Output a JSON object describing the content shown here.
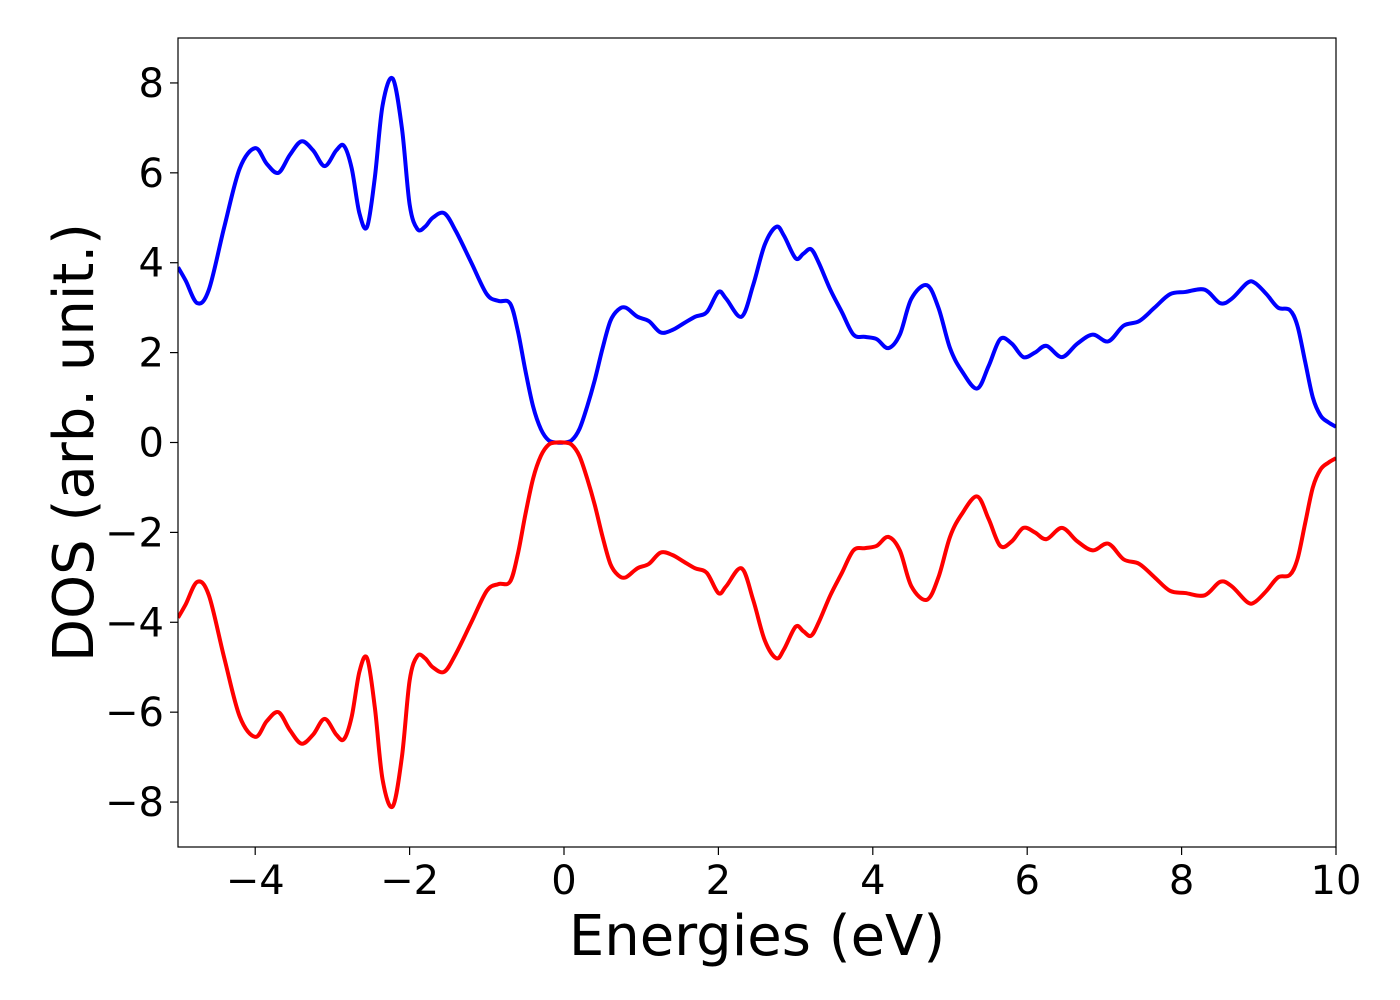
{
  "chart_data": {
    "type": "line",
    "title": "",
    "xlabel": "Energies (eV)",
    "ylabel": "DOS (arb. unit.)",
    "xlim": [
      -5,
      10
    ],
    "ylim": [
      -9,
      9
    ],
    "xticks": [
      -4,
      -2,
      0,
      2,
      4,
      6,
      8,
      10
    ],
    "yticks": [
      -8,
      -6,
      -4,
      -2,
      0,
      2,
      4,
      6,
      8
    ],
    "grid": false,
    "legend": "none",
    "series": [
      {
        "color": "#0000ff",
        "x": [
          -5.0,
          -4.9,
          -4.75,
          -4.6,
          -4.4,
          -4.2,
          -4.0,
          -3.85,
          -3.7,
          -3.55,
          -3.4,
          -3.25,
          -3.1,
          -2.95,
          -2.85,
          -2.75,
          -2.65,
          -2.55,
          -2.45,
          -2.35,
          -2.22,
          -2.1,
          -2.0,
          -1.9,
          -1.8,
          -1.7,
          -1.55,
          -1.4,
          -1.2,
          -1.0,
          -0.85,
          -0.7,
          -0.6,
          -0.5,
          -0.4,
          -0.3,
          -0.2,
          -0.1,
          0.0,
          0.1,
          0.2,
          0.3,
          0.4,
          0.5,
          0.6,
          0.7,
          0.8,
          0.95,
          1.1,
          1.25,
          1.4,
          1.55,
          1.7,
          1.85,
          2.0,
          2.1,
          2.3,
          2.45,
          2.6,
          2.75,
          2.85,
          3.0,
          3.1,
          3.2,
          3.3,
          3.45,
          3.6,
          3.75,
          3.9,
          4.05,
          4.2,
          4.35,
          4.5,
          4.7,
          4.85,
          5.0,
          5.15,
          5.35,
          5.5,
          5.65,
          5.8,
          5.95,
          6.1,
          6.25,
          6.45,
          6.65,
          6.85,
          7.05,
          7.25,
          7.45,
          7.65,
          7.85,
          8.05,
          8.3,
          8.5,
          8.65,
          8.85,
          8.95,
          9.1,
          9.25,
          9.4,
          9.5,
          9.6,
          9.7,
          9.8,
          9.9,
          10.0
        ],
        "y": [
          3.9,
          3.6,
          3.1,
          3.4,
          4.8,
          6.1,
          6.55,
          6.2,
          6.0,
          6.4,
          6.7,
          6.5,
          6.15,
          6.5,
          6.6,
          6.1,
          5.1,
          4.8,
          5.9,
          7.5,
          8.1,
          7.0,
          5.3,
          4.75,
          4.8,
          5.0,
          5.1,
          4.7,
          4.0,
          3.3,
          3.15,
          3.1,
          2.5,
          1.6,
          0.8,
          0.3,
          0.05,
          0.0,
          0.0,
          0.05,
          0.3,
          0.8,
          1.4,
          2.1,
          2.7,
          2.95,
          3.0,
          2.8,
          2.7,
          2.45,
          2.5,
          2.65,
          2.8,
          2.9,
          3.35,
          3.2,
          2.8,
          3.5,
          4.4,
          4.8,
          4.6,
          4.1,
          4.2,
          4.3,
          4.0,
          3.4,
          2.9,
          2.4,
          2.35,
          2.3,
          2.1,
          2.4,
          3.2,
          3.5,
          3.0,
          2.1,
          1.6,
          1.2,
          1.7,
          2.3,
          2.2,
          1.9,
          2.0,
          2.15,
          1.9,
          2.2,
          2.4,
          2.25,
          2.6,
          2.7,
          3.0,
          3.3,
          3.35,
          3.4,
          3.1,
          3.2,
          3.55,
          3.55,
          3.3,
          3.0,
          2.95,
          2.6,
          1.8,
          1.0,
          0.6,
          0.45,
          0.35
        ]
      },
      {
        "color": "#ff0000",
        "x": [
          -5.0,
          -4.9,
          -4.75,
          -4.6,
          -4.4,
          -4.2,
          -4.0,
          -3.85,
          -3.7,
          -3.55,
          -3.4,
          -3.25,
          -3.1,
          -2.95,
          -2.85,
          -2.75,
          -2.65,
          -2.55,
          -2.45,
          -2.35,
          -2.22,
          -2.1,
          -2.0,
          -1.9,
          -1.8,
          -1.7,
          -1.55,
          -1.4,
          -1.2,
          -1.0,
          -0.85,
          -0.7,
          -0.6,
          -0.5,
          -0.4,
          -0.3,
          -0.2,
          -0.1,
          0.0,
          0.1,
          0.2,
          0.3,
          0.4,
          0.5,
          0.6,
          0.7,
          0.8,
          0.95,
          1.1,
          1.25,
          1.4,
          1.55,
          1.7,
          1.85,
          2.0,
          2.1,
          2.3,
          2.45,
          2.6,
          2.75,
          2.85,
          3.0,
          3.1,
          3.2,
          3.3,
          3.45,
          3.6,
          3.75,
          3.9,
          4.05,
          4.2,
          4.35,
          4.5,
          4.7,
          4.85,
          5.0,
          5.15,
          5.35,
          5.5,
          5.65,
          5.8,
          5.95,
          6.1,
          6.25,
          6.45,
          6.65,
          6.85,
          7.05,
          7.25,
          7.45,
          7.65,
          7.85,
          8.05,
          8.3,
          8.5,
          8.65,
          8.85,
          8.95,
          9.1,
          9.25,
          9.4,
          9.5,
          9.6,
          9.7,
          9.8,
          9.9,
          10.0
        ],
        "y": [
          -3.9,
          -3.6,
          -3.1,
          -3.4,
          -4.8,
          -6.1,
          -6.55,
          -6.2,
          -6.0,
          -6.4,
          -6.7,
          -6.5,
          -6.15,
          -6.5,
          -6.6,
          -6.1,
          -5.1,
          -4.8,
          -5.9,
          -7.5,
          -8.1,
          -7.0,
          -5.3,
          -4.75,
          -4.8,
          -5.0,
          -5.1,
          -4.7,
          -4.0,
          -3.3,
          -3.15,
          -3.1,
          -2.5,
          -1.6,
          -0.8,
          -0.3,
          -0.05,
          0.0,
          0.0,
          -0.05,
          -0.3,
          -0.8,
          -1.4,
          -2.1,
          -2.7,
          -2.95,
          -3.0,
          -2.8,
          -2.7,
          -2.45,
          -2.5,
          -2.65,
          -2.8,
          -2.9,
          -3.35,
          -3.2,
          -2.8,
          -3.5,
          -4.4,
          -4.8,
          -4.6,
          -4.1,
          -4.2,
          -4.3,
          -4.0,
          -3.4,
          -2.9,
          -2.4,
          -2.35,
          -2.3,
          -2.1,
          -2.4,
          -3.2,
          -3.5,
          -3.0,
          -2.1,
          -1.6,
          -1.2,
          -1.7,
          -2.3,
          -2.2,
          -1.9,
          -2.0,
          -2.15,
          -1.9,
          -2.2,
          -2.4,
          -2.25,
          -2.6,
          -2.7,
          -3.0,
          -3.3,
          -3.35,
          -3.4,
          -3.1,
          -3.2,
          -3.55,
          -3.55,
          -3.3,
          -3.0,
          -2.95,
          -2.6,
          -1.8,
          -1.0,
          -0.6,
          -0.45,
          -0.35
        ]
      }
    ]
  }
}
